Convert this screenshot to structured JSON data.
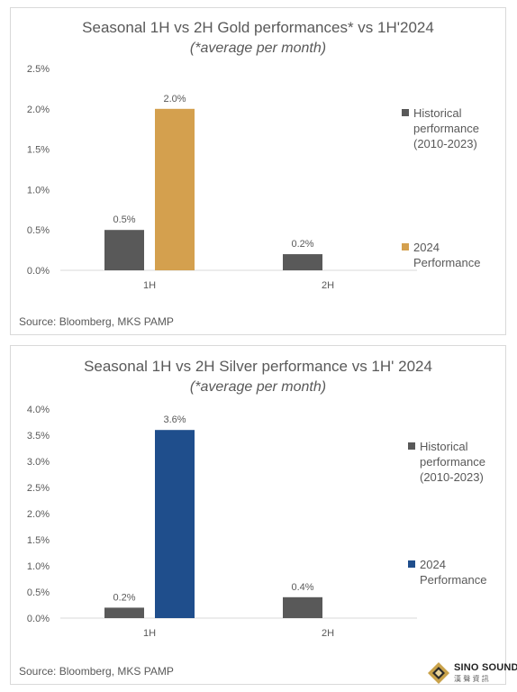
{
  "colors": {
    "historical": "#595959",
    "gold_2024": "#d4a04e",
    "silver_2024": "#1f4e8c",
    "text": "#595959",
    "gridline": "#d9d9d9"
  },
  "chart_data": [
    {
      "type": "bar",
      "title": "Seasonal 1H vs 2H Gold performances*  vs 1H'2024",
      "subtitle": "(*average per month)",
      "categories": [
        "1H",
        "2H"
      ],
      "series": [
        {
          "name": "Historical performance (2010-2023)",
          "values": [
            0.5,
            0.2
          ],
          "labels": [
            "0.5%",
            "0.2%"
          ],
          "color": "#595959"
        },
        {
          "name": "2024 Performance",
          "values": [
            2.0,
            null
          ],
          "labels": [
            "2.0%",
            ""
          ],
          "color": "#d4a04e"
        }
      ],
      "ylim": [
        0,
        2.5
      ],
      "yticks": [
        "0.0%",
        "0.5%",
        "1.0%",
        "1.5%",
        "2.0%",
        "2.5%"
      ],
      "ytick_values": [
        0,
        0.5,
        1.0,
        1.5,
        2.0,
        2.5
      ],
      "legend_position": "right",
      "legend": [
        {
          "lines": [
            "Historical",
            "performance",
            "(2010-2023)"
          ],
          "color": "#595959"
        },
        {
          "lines": [
            "2024",
            "Performance"
          ],
          "color": "#d4a04e"
        }
      ],
      "source": "Source: Bloomberg, MKS PAMP"
    },
    {
      "type": "bar",
      "title": "Seasonal 1H vs 2H Silver performance  vs 1H' 2024",
      "subtitle": "(*average per month)",
      "categories": [
        "1H",
        "2H"
      ],
      "series": [
        {
          "name": "Historical performance (2010-2023)",
          "values": [
            0.2,
            0.4
          ],
          "labels": [
            "0.2%",
            "0.4%"
          ],
          "color": "#595959"
        },
        {
          "name": "2024 Performance",
          "values": [
            3.6,
            null
          ],
          "labels": [
            "3.6%",
            ""
          ],
          "color": "#1f4e8c"
        }
      ],
      "ylim": [
        0,
        4.0
      ],
      "yticks": [
        "0.0%",
        "0.5%",
        "1.0%",
        "1.5%",
        "2.0%",
        "2.5%",
        "3.0%",
        "3.5%",
        "4.0%"
      ],
      "ytick_values": [
        0,
        0.5,
        1.0,
        1.5,
        2.0,
        2.5,
        3.0,
        3.5,
        4.0
      ],
      "legend_position": "right",
      "legend": [
        {
          "lines": [
            "Historical",
            "performance",
            "(2010-2023)"
          ],
          "color": "#595959"
        },
        {
          "lines": [
            "2024",
            "Performance"
          ],
          "color": "#1f4e8c"
        }
      ],
      "source": "Source: Bloomberg, MKS PAMP"
    }
  ],
  "watermark": {
    "brand": "SINO SOUND",
    "sub": "漢 聲 資 訊"
  }
}
